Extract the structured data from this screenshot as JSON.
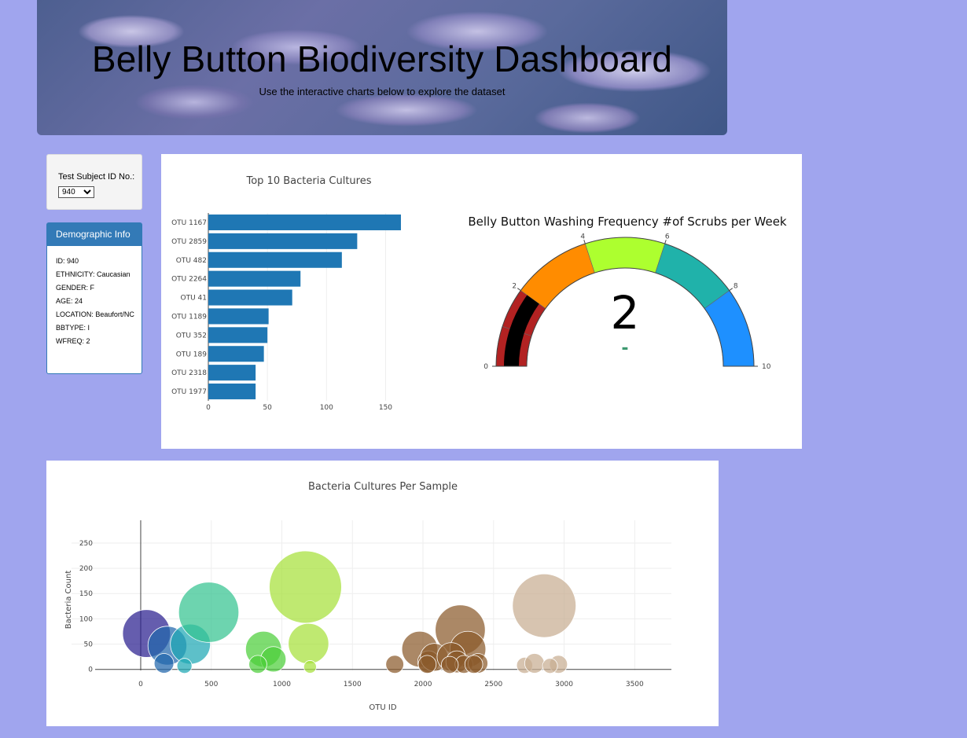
{
  "header": {
    "title": "Belly Button Biodiversity Dashboard",
    "subtitle": "Use the interactive charts below to explore the dataset"
  },
  "selector": {
    "label": "Test Subject ID No.:",
    "selected": "940"
  },
  "demographics": {
    "title": "Demographic Info",
    "items": [
      "ID: 940",
      "ETHNICITY: Caucasian",
      "GENDER: F",
      "AGE: 24",
      "LOCATION: Beaufort/NC",
      "BBTYPE: I",
      "WFREQ: 2"
    ]
  },
  "colors": {
    "page_bg": "#a0a5ee",
    "bar": "#1f77b4",
    "panel_primary": "#337ab7"
  },
  "chart_data": [
    {
      "type": "bar",
      "orientation": "horizontal",
      "title": "Top 10 Bacteria Cultures",
      "categories": [
        "OTU 1167",
        "OTU 2859",
        "OTU 482",
        "OTU 2264",
        "OTU 41",
        "OTU 1189",
        "OTU 352",
        "OTU 189",
        "OTU 2318",
        "OTU 1977"
      ],
      "values": [
        163,
        126,
        113,
        78,
        71,
        51,
        50,
        47,
        40,
        40
      ],
      "xticks": [
        0,
        50,
        100,
        150
      ],
      "xlim": [
        0,
        171
      ],
      "grid": true
    },
    {
      "type": "gauge",
      "title": "Belly Button Washing Frequency #of Scrubs per Week",
      "value": 2,
      "delta": "-",
      "range": [
        0,
        10
      ],
      "ticks": [
        0,
        2,
        4,
        6,
        8,
        10
      ],
      "steps": [
        {
          "range": [
            0,
            1
          ],
          "color": "#b22222"
        },
        {
          "range": [
            1,
            2
          ],
          "color": "#b22222"
        },
        {
          "range": [
            2,
            4
          ],
          "color": "#ff8c00"
        },
        {
          "range": [
            4,
            6
          ],
          "color": "#adff2f"
        },
        {
          "range": [
            6,
            8
          ],
          "color": "#20b2aa"
        },
        {
          "range": [
            8,
            10
          ],
          "color": "#1e90ff"
        }
      ],
      "bar_color": "#000000"
    },
    {
      "type": "scatter",
      "mode": "bubble",
      "title": "Bacteria Cultures Per Sample",
      "xlabel": "OTU ID",
      "ylabel": "Bacteria Count",
      "xticks": [
        0,
        500,
        1000,
        1500,
        2000,
        2500,
        3000,
        3500
      ],
      "yticks": [
        0,
        50,
        100,
        150,
        200,
        250
      ],
      "xlim": [
        -490,
        3760
      ],
      "ylim": [
        -2,
        295
      ],
      "grid": true,
      "points": [
        {
          "x": 41,
          "y": 71,
          "color": "#2a1f8f"
        },
        {
          "x": 189,
          "y": 47,
          "color": "#2166ac"
        },
        {
          "x": 352,
          "y": 50,
          "color": "#1fa8b4"
        },
        {
          "x": 482,
          "y": 113,
          "color": "#35c490"
        },
        {
          "x": 1167,
          "y": 163,
          "color": "#a6e03a"
        },
        {
          "x": 1189,
          "y": 51,
          "color": "#a6e03a"
        },
        {
          "x": 870,
          "y": 40,
          "color": "#4ccf3a"
        },
        {
          "x": 940,
          "y": 20,
          "color": "#4ccf3a"
        },
        {
          "x": 2264,
          "y": 78,
          "color": "#8b5a2b"
        },
        {
          "x": 2318,
          "y": 40,
          "color": "#8b5a2b"
        },
        {
          "x": 1977,
          "y": 40,
          "color": "#8b5a2b"
        },
        {
          "x": 2859,
          "y": 126,
          "color": "#c8ad91"
        },
        {
          "x": 165,
          "y": 12,
          "color": "#2166ac"
        },
        {
          "x": 310,
          "y": 7,
          "color": "#1fa8b4"
        },
        {
          "x": 830,
          "y": 10,
          "color": "#4ccf3a"
        },
        {
          "x": 2040,
          "y": 15,
          "color": "#8b5a2b"
        },
        {
          "x": 2080,
          "y": 24,
          "color": "#8b5a2b"
        },
        {
          "x": 2200,
          "y": 25,
          "color": "#8b5a2b"
        },
        {
          "x": 2240,
          "y": 15,
          "color": "#8b5a2b"
        },
        {
          "x": 2290,
          "y": 10,
          "color": "#8b5a2b"
        },
        {
          "x": 2390,
          "y": 12,
          "color": "#8b5a2b"
        },
        {
          "x": 1800,
          "y": 10,
          "color": "#8b5a2b"
        },
        {
          "x": 2030,
          "y": 10,
          "color": "#8b5a2b"
        },
        {
          "x": 2720,
          "y": 8,
          "color": "#c8ad91"
        },
        {
          "x": 2790,
          "y": 12,
          "color": "#c8ad91"
        },
        {
          "x": 2960,
          "y": 10,
          "color": "#c8ad91"
        },
        {
          "x": 2900,
          "y": 7,
          "color": "#c8ad91"
        },
        {
          "x": 1200,
          "y": 5,
          "color": "#a6e03a"
        },
        {
          "x": 2190,
          "y": 9,
          "color": "#8b5a2b"
        },
        {
          "x": 2360,
          "y": 10,
          "color": "#8b5a2b"
        }
      ]
    }
  ]
}
